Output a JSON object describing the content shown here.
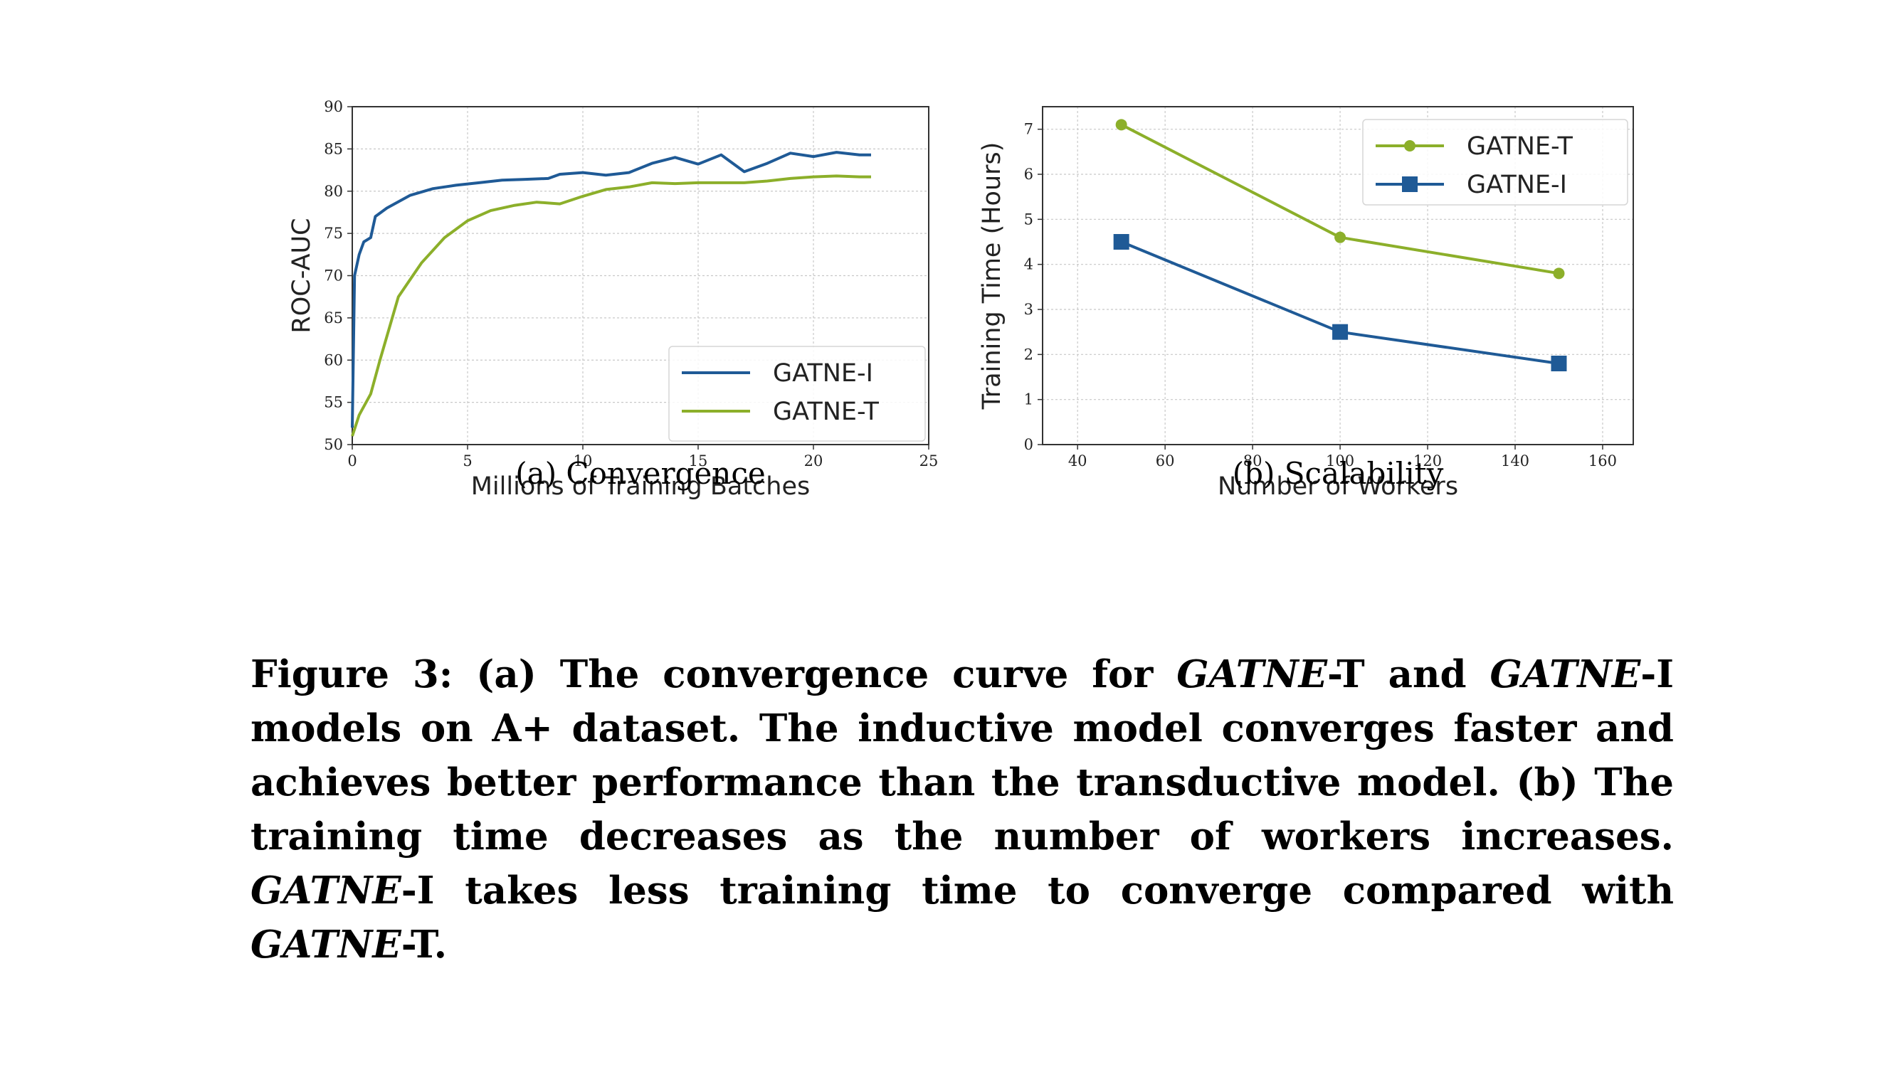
{
  "chart_data": [
    {
      "type": "line",
      "subcaption": "(a)  Convergence",
      "xlabel": "Millions of Training Batches",
      "ylabel": "ROC-AUC",
      "xlim": [
        0,
        25
      ],
      "ylim": [
        50,
        90
      ],
      "xticks": [
        0,
        5,
        10,
        15,
        20,
        25
      ],
      "yticks": [
        50,
        55,
        60,
        65,
        70,
        75,
        80,
        85,
        90
      ],
      "grid": true,
      "legend_position": "bottom-right",
      "series": [
        {
          "name": "GATNE-I",
          "color": "#1f5a96",
          "x": [
            0,
            0.1,
            0.3,
            0.5,
            0.8,
            1.0,
            1.5,
            2.5,
            3.5,
            4.5,
            5.5,
            6.5,
            7.5,
            8.5,
            9.0,
            10.0,
            11.0,
            12.0,
            13.0,
            14.0,
            15.0,
            16.0,
            17.0,
            18.0,
            19.0,
            20.0,
            21.0,
            22.0,
            22.5
          ],
          "y": [
            52,
            70,
            72.5,
            74,
            74.5,
            77,
            78,
            79.5,
            80.3,
            80.7,
            81.0,
            81.3,
            81.4,
            81.5,
            82.0,
            82.2,
            81.9,
            82.2,
            83.3,
            84.0,
            83.2,
            84.3,
            82.3,
            83.3,
            84.5,
            84.1,
            84.6,
            84.3,
            84.3
          ]
        },
        {
          "name": "GATNE-T",
          "color": "#8caf2a",
          "x": [
            0,
            0.3,
            0.8,
            1.2,
            2.0,
            3.0,
            4.0,
            5.0,
            6.0,
            7.0,
            8.0,
            9.0,
            10.0,
            11.0,
            12.0,
            13.0,
            14.0,
            15.0,
            16.0,
            17.0,
            18.0,
            19.0,
            20.0,
            21.0,
            22.0,
            22.5
          ],
          "y": [
            51,
            53.5,
            56,
            60,
            67.5,
            71.5,
            74.5,
            76.5,
            77.7,
            78.3,
            78.7,
            78.5,
            79.4,
            80.2,
            80.5,
            81.0,
            80.9,
            81.0,
            81.0,
            81.0,
            81.2,
            81.5,
            81.7,
            81.8,
            81.7,
            81.7
          ]
        }
      ]
    },
    {
      "type": "line",
      "subcaption": "(b)  Scalability",
      "xlabel": "Number of Workers",
      "ylabel": "Training Time (Hours)",
      "xlim": [
        32,
        167
      ],
      "ylim": [
        0,
        7.5
      ],
      "xticks": [
        40,
        60,
        80,
        100,
        120,
        140,
        160
      ],
      "yticks": [
        0,
        1,
        2,
        3,
        4,
        5,
        6,
        7
      ],
      "grid": true,
      "legend_position": "top-right",
      "series": [
        {
          "name": "GATNE-T",
          "color": "#8caf2a",
          "marker": "circle",
          "x": [
            50,
            100,
            150
          ],
          "y": [
            7.1,
            4.6,
            3.8
          ]
        },
        {
          "name": "GATNE-I",
          "color": "#1f5a96",
          "marker": "square",
          "x": [
            50,
            100,
            150
          ],
          "y": [
            4.5,
            2.5,
            1.8
          ]
        }
      ]
    }
  ],
  "caption": {
    "label": "Figure 3:",
    "part_a_marker": "(a)",
    "text_1": "The convergence curve for",
    "model_name": "GATNE",
    "suffix_t": "-T",
    "and": "and",
    "suffix_i": "-I",
    "text_2": "models on A+ dataset. The inductive model converges faster and achieves better performance than the transductive model.",
    "part_b_marker": "(b)",
    "text_3": "The training time decreases as the number of workers increases.",
    "text_4": "takes less training time to converge compared with",
    "end": "."
  }
}
